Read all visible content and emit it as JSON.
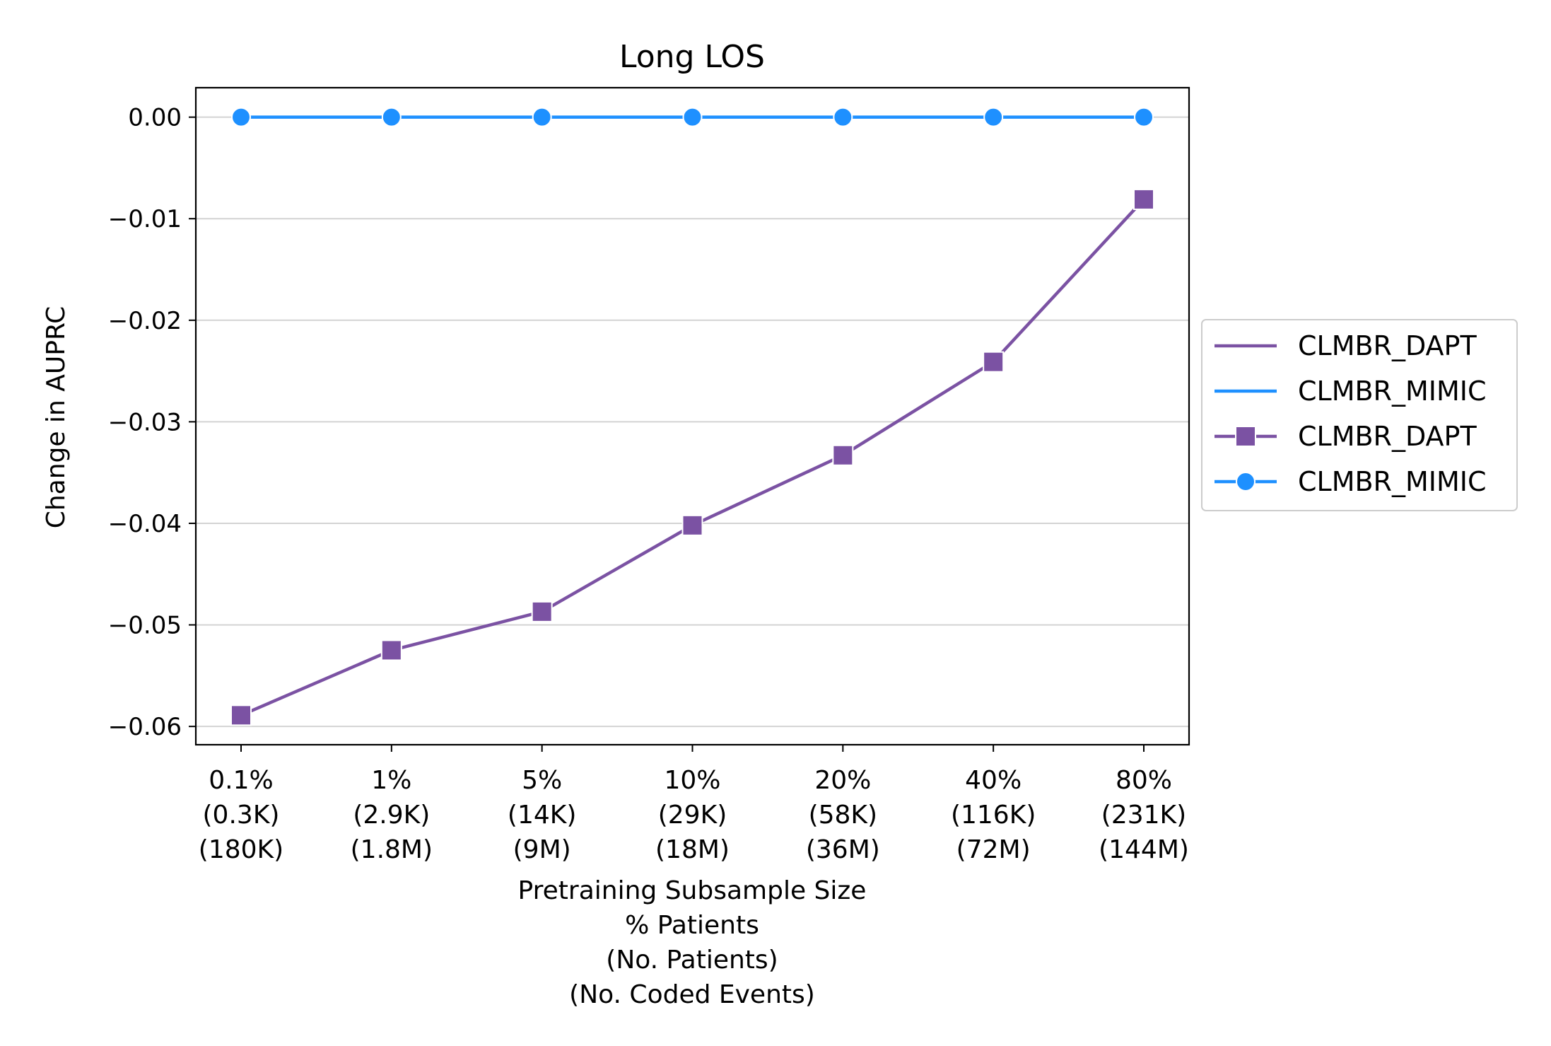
{
  "chart_data": {
    "type": "line",
    "title": "Long LOS",
    "ylabel": "Change in AUPRC",
    "xlabel_lines": [
      "Pretraining Subsample Size",
      "% Patients",
      "(No. Patients)",
      "(No. Coded Events)"
    ],
    "categories": [
      [
        "0.1%",
        "(0.3K)",
        "(180K)"
      ],
      [
        "1%",
        "(2.9K)",
        "(1.8M)"
      ],
      [
        "5%",
        "(14K)",
        "(9M)"
      ],
      [
        "10%",
        "(29K)",
        "(18M)"
      ],
      [
        "20%",
        "(58K)",
        "(36M)"
      ],
      [
        "40%",
        "(116K)",
        "(72M)"
      ],
      [
        "80%",
        "(231K)",
        "(144M)"
      ]
    ],
    "ylim": [
      -0.0618,
      0.0029
    ],
    "yticks": [
      0.0,
      -0.01,
      -0.02,
      -0.03,
      -0.04,
      -0.05,
      -0.06
    ],
    "ytick_labels": [
      "0.00",
      "−0.01",
      "−0.02",
      "−0.03",
      "−0.04",
      "−0.05",
      "−0.06"
    ],
    "grid": "horizontal",
    "legend_placement": "outside-right",
    "series": [
      {
        "name": "CLMBR_DAPT",
        "color": "#7b52a3",
        "marker": "square",
        "values": [
          -0.0589,
          -0.0525,
          -0.0487,
          -0.0402,
          -0.0333,
          -0.0241,
          -0.0081
        ]
      },
      {
        "name": "CLMBR_MIMIC",
        "color": "#1e90ff",
        "marker": "circle",
        "values": [
          0.0,
          0.0,
          0.0,
          0.0,
          0.0,
          0.0,
          0.0
        ]
      }
    ],
    "legend": [
      {
        "label": "CLMBR_DAPT",
        "style": "line",
        "series": 0
      },
      {
        "label": "CLMBR_MIMIC",
        "style": "line",
        "series": 1
      },
      {
        "label": "CLMBR_DAPT",
        "style": "line-marker",
        "series": 0
      },
      {
        "label": "CLMBR_MIMIC",
        "style": "line-marker",
        "series": 1
      }
    ]
  }
}
